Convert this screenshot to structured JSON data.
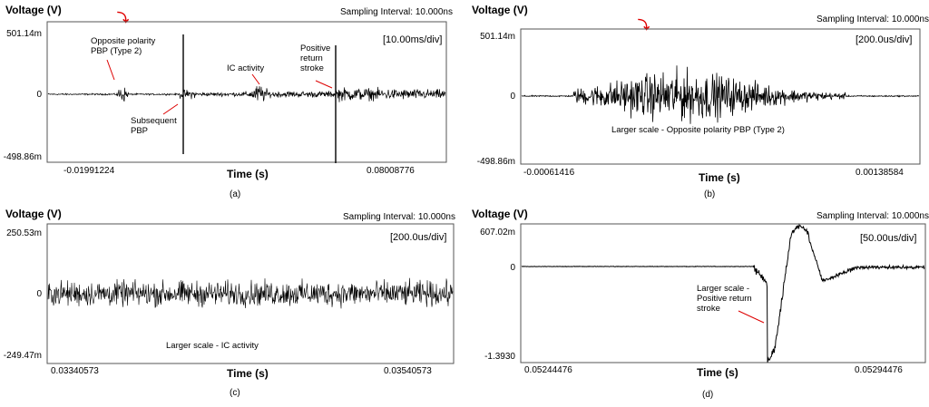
{
  "chart_data": [
    {
      "type": "line",
      "id": "a",
      "caption": "(a)",
      "ylabel": "Voltage (V)",
      "xlabel": "Time (s)",
      "sampling_interval": "Sampling Interval: 10.000ns",
      "div_label": "[10.00ms/div]",
      "y_ticks": [
        "501.14m",
        "0",
        "-498.86m"
      ],
      "x_ticks": [
        "-0.01991224",
        "0.08008776"
      ],
      "xlim": [
        -0.01991224,
        0.08008776
      ],
      "ylim": [
        -0.49886,
        0.50114
      ],
      "annotations": [
        "Opposite polarity PBP (Type 2)",
        "Subsequent PBP",
        "IC activity",
        "Positive return stroke"
      ],
      "trigger_marker": true
    },
    {
      "type": "line",
      "id": "b",
      "caption": "(b)",
      "ylabel": "Voltage (V)",
      "xlabel": "Time (s)",
      "sampling_interval": "Sampling Interval: 10.000ns",
      "div_label": "[200.0us/div]",
      "y_ticks": [
        "501.14m",
        "0",
        "-498.86m"
      ],
      "x_ticks": [
        "-0.00061416",
        "0.00138584"
      ],
      "xlim": [
        -0.00061416,
        0.00138584
      ],
      "ylim": [
        -0.49886,
        0.50114
      ],
      "annotations": [
        "Larger scale - Opposite polarity PBP (Type 2)"
      ],
      "trigger_marker": true
    },
    {
      "type": "line",
      "id": "c",
      "caption": "(c)",
      "ylabel": "Voltage (V)",
      "xlabel": "Time (s)",
      "sampling_interval": "Sampling Interval: 10.000ns",
      "div_label": "[200.0us/div]",
      "y_ticks": [
        "250.53m",
        "0",
        "-249.47m"
      ],
      "x_ticks": [
        "0.03340573",
        "0.03540573"
      ],
      "xlim": [
        0.03340573,
        0.03540573
      ],
      "ylim": [
        -0.24947,
        0.25053
      ],
      "annotations": [
        "Larger scale -  IC activity"
      ]
    },
    {
      "type": "line",
      "id": "d",
      "caption": "(d)",
      "ylabel": "Voltage (V)",
      "xlabel": "Time (s)",
      "sampling_interval": "Sampling Interval: 10.000ns",
      "div_label": "[50.00us/div]",
      "y_ticks": [
        "607.02m",
        "0",
        "-1.3930"
      ],
      "x_ticks": [
        "0.05244476",
        "0.05294476"
      ],
      "xlim": [
        0.05244476,
        0.05294476
      ],
      "ylim": [
        -1.393,
        0.60702
      ],
      "annotations": [
        "Larger scale - Positive return stroke"
      ]
    }
  ]
}
